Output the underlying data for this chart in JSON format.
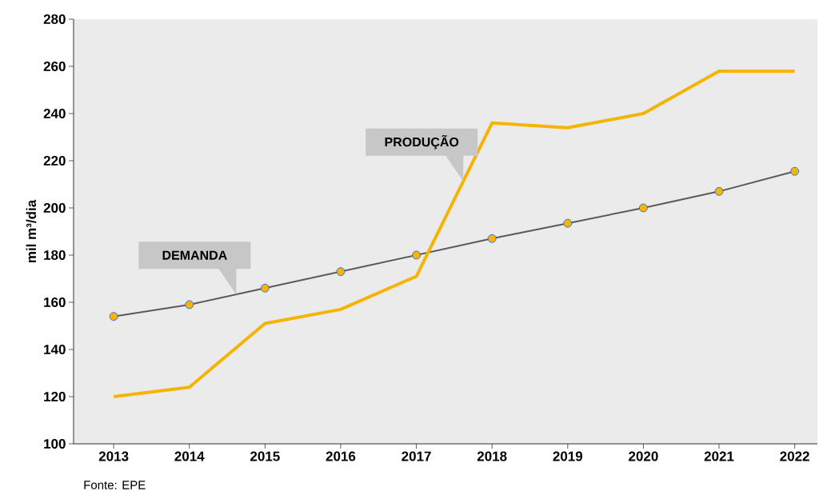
{
  "chart_data": {
    "type": "line",
    "ylabel": "mil m³/dia",
    "categories": [
      "2013",
      "2014",
      "2015",
      "2016",
      "2017",
      "2018",
      "2019",
      "2020",
      "2021",
      "2022"
    ],
    "series": [
      {
        "name": "DEMANDA",
        "color": "#5a5a5a",
        "marker": "circle",
        "values": [
          154,
          159,
          166,
          173,
          180,
          187,
          193.5,
          200,
          207,
          215.5
        ]
      },
      {
        "name": "PRODUÇÃO",
        "color": "#f5b400",
        "marker": "none",
        "values": [
          120,
          124,
          151,
          157,
          171,
          236,
          234,
          240,
          258,
          258
        ]
      }
    ],
    "ylim": [
      100,
      280
    ],
    "yticks": [
      100,
      120,
      140,
      160,
      180,
      200,
      220,
      240,
      260,
      280
    ],
    "grid": false,
    "annotations": [
      "Fonte: EPE"
    ]
  }
}
